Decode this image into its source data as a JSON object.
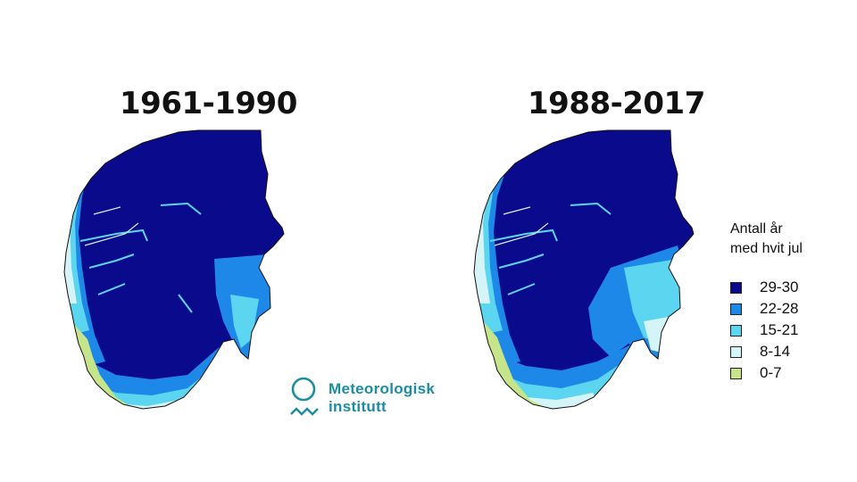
{
  "maps": [
    {
      "id": "left",
      "period": "1961-1990",
      "source_icon": "norway-snow-map-1961-1990"
    },
    {
      "id": "right",
      "period": "1988-2017",
      "source_icon": "norway-snow-map-1988-2017"
    }
  ],
  "legend": {
    "title_line1": "Antall år",
    "title_line2": "med hvit jul",
    "items": [
      {
        "label": "29-30",
        "color": "#0a0a8c"
      },
      {
        "label": "22-28",
        "color": "#1e88e8"
      },
      {
        "label": "15-21",
        "color": "#5cd6f0"
      },
      {
        "label": "8-14",
        "color": "#d4f4f8"
      },
      {
        "label": "0-7",
        "color": "#c6e58a"
      }
    ]
  },
  "logo": {
    "line1": "Meteorologisk",
    "line2": "institutt",
    "color": "#1a8ea0",
    "icon": "met-logo-icon"
  }
}
